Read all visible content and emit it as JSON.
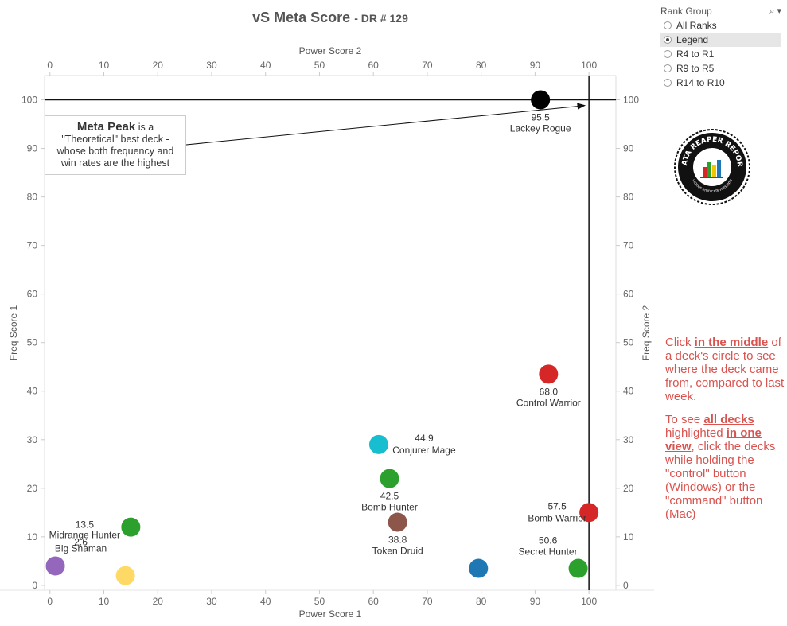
{
  "title": {
    "main": "vS Meta Score",
    "sub": "- DR # 129"
  },
  "chart_data": {
    "type": "scatter",
    "xlabel_top": "Power Score 2",
    "xlabel_bottom": "Power Score 1",
    "ylabel_left": "Freq Score 1",
    "ylabel_right": "Freq Score 2",
    "xlim": [
      -1,
      105
    ],
    "ylim": [
      -1,
      105
    ],
    "xticks": [
      0,
      10,
      20,
      30,
      40,
      50,
      60,
      70,
      80,
      90,
      100
    ],
    "yticks": [
      0,
      10,
      20,
      30,
      40,
      50,
      60,
      70,
      80,
      90,
      100
    ],
    "ref_lines": {
      "y": 100,
      "x": 100
    },
    "points": [
      {
        "name": "Lackey Rogue",
        "score": "95.5",
        "x": 91,
        "y": 100,
        "color": "#000000"
      },
      {
        "name": "Control Warrior",
        "score": "68.0",
        "x": 92.5,
        "y": 43.5,
        "color": "#d62728"
      },
      {
        "name": "Conjurer Mage",
        "score": "44.9",
        "x": 61,
        "y": 29,
        "color": "#17becf"
      },
      {
        "name": "Bomb Hunter",
        "score": "42.5",
        "x": 63,
        "y": 22,
        "color": "#2ca02c"
      },
      {
        "name": "Bomb Warrior",
        "score": "57.5",
        "x": 100,
        "y": 15,
        "color": "#d62728"
      },
      {
        "name": "Token Druid",
        "score": "38.8",
        "x": 64.5,
        "y": 13,
        "color": "#8c564b"
      },
      {
        "name": "Secret Hunter",
        "score": "50.6",
        "x": 98,
        "y": 3.5,
        "color": "#2ca02c"
      },
      {
        "name": "",
        "score": "",
        "x": 79.5,
        "y": 3.5,
        "color": "#1f77b4"
      },
      {
        "name": "Midrange Hunter",
        "score": "13.5",
        "x": 15,
        "y": 12,
        "color": "#2ca02c"
      },
      {
        "name": "Big Shaman",
        "score": "2.6",
        "x": 1,
        "y": 4,
        "color": "#9467bd"
      },
      {
        "name": "",
        "score": "",
        "x": 14,
        "y": 2,
        "color": "#ffd966"
      }
    ]
  },
  "annotation": {
    "bold": "Meta Peak",
    "text1": " is a",
    "text2": "\"Theoretical\" best deck -",
    "text3": "whose both frequency and",
    "text4": "win rates are the highest"
  },
  "rank_group": {
    "title": "Rank Group",
    "options": [
      "All Ranks",
      "Legend",
      "R4 to R1",
      "R9 to R5",
      "R14 to R10"
    ],
    "selected": "Legend"
  },
  "logo": {
    "text": "DATA REAPER REPORT",
    "subtext": "VICIOUS SYNDICATE PRESENTS"
  },
  "help": {
    "p1_a": "Click ",
    "p1_b": "in the middle",
    "p1_c": " of a deck's circle to see where the deck came from, compared to last week.",
    "p2_a": "To see ",
    "p2_b": "all decks ",
    "p2_c": " highlighted ",
    "p2_d": "in one view",
    "p2_e": ", click the decks while holding the \"control\" button (Windows) or the \"command\" button (Mac)"
  }
}
